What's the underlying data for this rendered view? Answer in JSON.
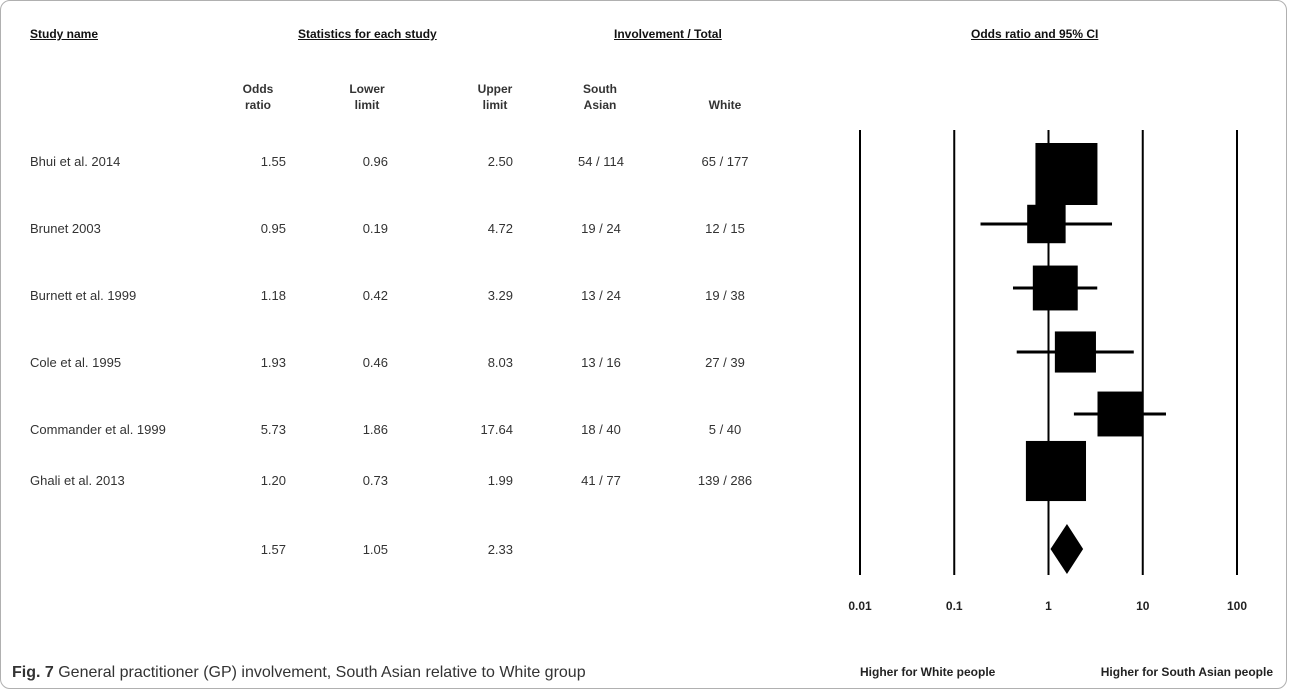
{
  "headers": {
    "study_name": "Study name",
    "statistics": "Statistics for each study",
    "involvement": "Involvement / Total",
    "odds_ratio_ci": "Odds ratio and 95% CI"
  },
  "subheaders": {
    "or": "Odds ratio",
    "lower": "Lower limit",
    "upper": "Upper limit",
    "sa": "South Asian",
    "white": "White"
  },
  "rows": [
    {
      "study": "Bhui et al. 2014",
      "or": "1.55",
      "lower": "0.96",
      "upper": "2.50",
      "sa": "54 / 114",
      "white": "65 / 177"
    },
    {
      "study": "Brunet 2003",
      "or": "0.95",
      "lower": "0.19",
      "upper": "4.72",
      "sa": "19 / 24",
      "white": "12 / 15"
    },
    {
      "study": "Burnett et al. 1999",
      "or": "1.18",
      "lower": "0.42",
      "upper": "3.29",
      "sa": "13 / 24",
      "white": "19 / 38"
    },
    {
      "study": "Cole et al. 1995",
      "or": "1.93",
      "lower": "0.46",
      "upper": "8.03",
      "sa": "13 / 16",
      "white": "27 / 39"
    },
    {
      "study": "Commander et al. 1999",
      "or": "5.73",
      "lower": "1.86",
      "upper": "17.64",
      "sa": "18 / 40",
      "white": "5 / 40"
    },
    {
      "study": "Ghali et al. 2013",
      "or": "1.20",
      "lower": "0.73",
      "upper": "1.99",
      "sa": "41 / 77",
      "white": "139 / 286"
    }
  ],
  "pooled": {
    "or": "1.57",
    "lower": "1.05",
    "upper": "2.33"
  },
  "caption": {
    "label": "Fig. 7",
    "text": " General practitioner (GP) involvement, South Asian relative to White group"
  },
  "chart_data": {
    "type": "scatter",
    "subtype": "forest-plot",
    "x_scale": "log",
    "x_range": [
      0.01,
      100
    ],
    "x_ticks": [
      "0.01",
      "0.1",
      "1",
      "10",
      "100"
    ],
    "x_tick_values": [
      0.01,
      0.1,
      1,
      10,
      100
    ],
    "left_label": "Higher for White people",
    "right_label": "Higher for South Asian people",
    "studies": [
      {
        "name": "Bhui et al. 2014",
        "or": 1.55,
        "lower": 0.96,
        "upper": 2.5,
        "weight": 1.0
      },
      {
        "name": "Brunet 2003",
        "or": 0.95,
        "lower": 0.19,
        "upper": 4.72,
        "weight": 0.38
      },
      {
        "name": "Burnett et al. 1999",
        "or": 1.18,
        "lower": 0.42,
        "upper": 3.29,
        "weight": 0.55
      },
      {
        "name": "Cole et al. 1995",
        "or": 1.93,
        "lower": 0.46,
        "upper": 8.03,
        "weight": 0.45
      },
      {
        "name": "Commander et al. 1999",
        "or": 5.73,
        "lower": 1.86,
        "upper": 17.64,
        "weight": 0.55
      },
      {
        "name": "Ghali et al. 2013",
        "or": 1.2,
        "lower": 0.73,
        "upper": 1.99,
        "weight": 0.95
      }
    ],
    "pooled": {
      "or": 1.57,
      "lower": 1.05,
      "upper": 2.33
    },
    "grid": false
  }
}
